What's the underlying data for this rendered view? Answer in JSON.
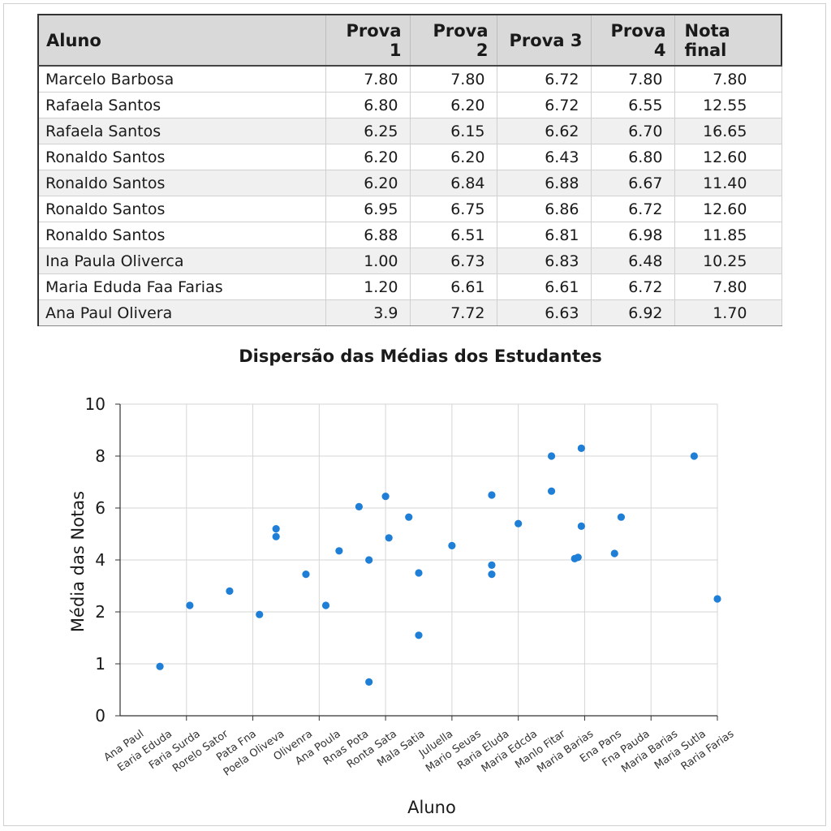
{
  "table": {
    "headers": [
      "Aluno",
      "Prova 1",
      "Prova 2",
      "Prova 3",
      "Prova 4",
      "Nota final"
    ],
    "rows": [
      [
        "Marcelo Barbosa",
        "7.80",
        "7.80",
        "6.72",
        "7.80",
        "7.80"
      ],
      [
        "Rafaela Santos",
        "6.80",
        "6.20",
        "6.72",
        "6.55",
        "12.55"
      ],
      [
        "Rafaela Santos",
        "6.25",
        "6.15",
        "6.62",
        "6.70",
        "16.65"
      ],
      [
        "Ronaldo Santos",
        "6.20",
        "6.20",
        "6.43",
        "6.80",
        "12.60"
      ],
      [
        "Ronaldo Santos",
        "6.20",
        "6.84",
        "6.88",
        "6.67",
        "11.40"
      ],
      [
        "Ronaldo Santos",
        "6.95",
        "6.75",
        "6.86",
        "6.72",
        "12.60"
      ],
      [
        "Ronaldo Santos",
        "6.88",
        "6.51",
        "6.81",
        "6.98",
        "11.85"
      ],
      [
        "Ina Paula Oliverca",
        "1.00",
        "6.73",
        "6.83",
        "6.48",
        "10.25"
      ],
      [
        "Maria Eduda Faa Farias",
        "1.20",
        "6.61",
        "6.61",
        "6.72",
        "7.80"
      ],
      [
        "Ana Paul Olivera",
        "3.9",
        "7.72",
        "6.63",
        "6.92",
        "1.70"
      ]
    ]
  },
  "chart_data": {
    "type": "scatter",
    "title": "Dispersão das Médias dos Estudantes",
    "xlabel": "Aluno",
    "ylabel": "Média das Notas",
    "y_ticks": [
      "0",
      "1",
      "2",
      "4",
      "6",
      "8",
      "10"
    ],
    "grid": true,
    "color": "#1f7fd6",
    "categories": [
      "Ana Paul",
      "Earia Eduda",
      "Faria Surda",
      "Rorelo Sator",
      "Pata Fna",
      "Poela Oliveva",
      "Olivenra",
      "Ana Poula",
      "Rnas Pota",
      "Ronta Sata",
      "Mala Satia",
      "Juluella",
      "Mario Seuas",
      "Raria Eluda",
      "Maria Edcda",
      "Manlo Fitar",
      "Maria Barias",
      "Ena Pans",
      "Fna Pauda",
      "Maria Barias",
      "Maria Sutla",
      "Raria Farias"
    ],
    "points": [
      {
        "x": 0.6,
        "y": 0.95
      },
      {
        "x": 1.05,
        "y": 2.25
      },
      {
        "x": 1.65,
        "y": 2.8
      },
      {
        "x": 2.1,
        "y": 1.95
      },
      {
        "x": 2.35,
        "y": 5.2
      },
      {
        "x": 2.35,
        "y": 4.9
      },
      {
        "x": 2.8,
        "y": 3.45
      },
      {
        "x": 3.1,
        "y": 2.25
      },
      {
        "x": 3.3,
        "y": 4.35
      },
      {
        "x": 3.6,
        "y": 6.05
      },
      {
        "x": 3.75,
        "y": 4.0
      },
      {
        "x": 3.75,
        "y": 0.65
      },
      {
        "x": 4.0,
        "y": 6.45
      },
      {
        "x": 4.05,
        "y": 4.85
      },
      {
        "x": 4.35,
        "y": 5.65
      },
      {
        "x": 4.5,
        "y": 3.5
      },
      {
        "x": 4.5,
        "y": 1.55
      },
      {
        "x": 5.0,
        "y": 4.55
      },
      {
        "x": 5.6,
        "y": 6.5
      },
      {
        "x": 5.6,
        "y": 3.8
      },
      {
        "x": 5.6,
        "y": 3.45
      },
      {
        "x": 6.0,
        "y": 5.4
      },
      {
        "x": 6.5,
        "y": 8.0
      },
      {
        "x": 6.5,
        "y": 6.65
      },
      {
        "x": 6.85,
        "y": 4.05
      },
      {
        "x": 6.9,
        "y": 4.1
      },
      {
        "x": 6.95,
        "y": 8.3
      },
      {
        "x": 6.95,
        "y": 5.3
      },
      {
        "x": 7.45,
        "y": 4.25
      },
      {
        "x": 7.55,
        "y": 5.65
      },
      {
        "x": 8.65,
        "y": 8.0
      },
      {
        "x": 9.0,
        "y": 2.5
      }
    ]
  }
}
